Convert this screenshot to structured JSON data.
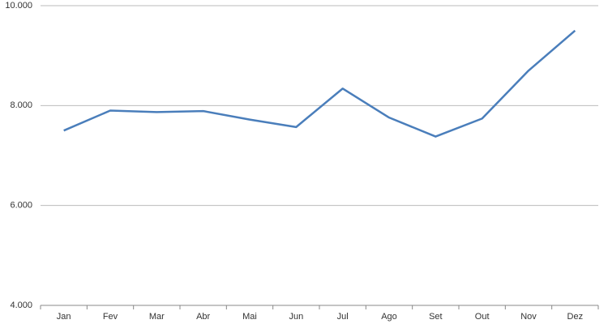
{
  "chart_data": {
    "type": "line",
    "categories": [
      "Jan",
      "Fev",
      "Mar",
      "Abr",
      "Mai",
      "Jun",
      "Jul",
      "Ago",
      "Set",
      "Out",
      "Nov",
      "Dez"
    ],
    "series": [
      {
        "color": "#4a7ebb",
        "values": [
          7500,
          7900,
          7870,
          7890,
          7720,
          7570,
          8340,
          7760,
          7380,
          7740,
          8700,
          9500
        ]
      }
    ],
    "ylim": [
      4000,
      10000
    ],
    "yticks": [
      {
        "value": 4000,
        "label": "4.000"
      },
      {
        "value": 6000,
        "label": "6.000"
      },
      {
        "value": 8000,
        "label": "8.000"
      },
      {
        "value": 10000,
        "label": "10.000"
      }
    ],
    "grid": true
  }
}
